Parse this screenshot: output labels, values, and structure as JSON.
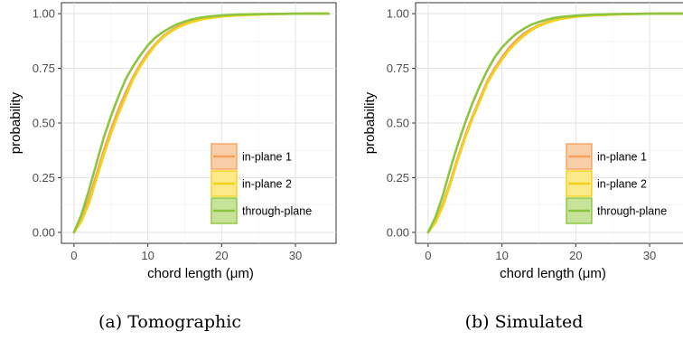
{
  "figure": {
    "panels": [
      {
        "caption": "(a) Tomographic",
        "chart_data": {
          "type": "line",
          "title": "",
          "xlabel": "chord length (μm)",
          "ylabel": "probability",
          "xlim": [
            -1.7,
            35.5
          ],
          "ylim": [
            -0.05,
            1.05
          ],
          "xticks": [
            0,
            10,
            20,
            30
          ],
          "yticks": [
            0.0,
            0.25,
            0.5,
            0.75,
            1.0
          ],
          "ytick_labels": [
            "0.00",
            "0.25",
            "0.50",
            "0.75",
            "1.00"
          ],
          "grid": true,
          "legend_position": "bottom-right",
          "series": [
            {
              "name": "in-plane 1",
              "color": "#f4a261",
              "fill": "#f9cfa9",
              "x": [
                0,
                1,
                2,
                3,
                4,
                5,
                6,
                7,
                8,
                9,
                10,
                11,
                12,
                13,
                14,
                15,
                16,
                17,
                18,
                20,
                22,
                25,
                28,
                31,
                34.5
              ],
              "y": [
                0.0,
                0.06,
                0.15,
                0.26,
                0.37,
                0.47,
                0.56,
                0.64,
                0.71,
                0.77,
                0.82,
                0.86,
                0.895,
                0.92,
                0.94,
                0.955,
                0.965,
                0.973,
                0.98,
                0.988,
                0.993,
                0.997,
                0.999,
                1.0,
                1.0
              ]
            },
            {
              "name": "in-plane 2",
              "color": "#f2d21b",
              "fill": "#fbe98a",
              "x": [
                0,
                1,
                2,
                3,
                4,
                5,
                6,
                7,
                8,
                9,
                10,
                11,
                12,
                13,
                14,
                15,
                16,
                17,
                18,
                20,
                22,
                25,
                28,
                31,
                34.5
              ],
              "y": [
                0.0,
                0.05,
                0.13,
                0.24,
                0.35,
                0.45,
                0.54,
                0.62,
                0.7,
                0.76,
                0.81,
                0.855,
                0.89,
                0.915,
                0.935,
                0.95,
                0.962,
                0.971,
                0.978,
                0.987,
                0.992,
                0.996,
                0.999,
                1.0,
                1.0
              ]
            },
            {
              "name": "through-plane",
              "color": "#8cc63f",
              "fill": "#c7e39a",
              "x": [
                0,
                1,
                2,
                3,
                4,
                5,
                6,
                7,
                8,
                9,
                10,
                11,
                12,
                13,
                14,
                15,
                16,
                17,
                18,
                20,
                22,
                25,
                28,
                31,
                34.5
              ],
              "y": [
                0.0,
                0.08,
                0.19,
                0.31,
                0.43,
                0.53,
                0.62,
                0.7,
                0.76,
                0.81,
                0.855,
                0.89,
                0.915,
                0.935,
                0.952,
                0.964,
                0.974,
                0.981,
                0.986,
                0.992,
                0.996,
                0.998,
                0.999,
                1.0,
                1.0
              ]
            }
          ]
        }
      },
      {
        "caption": "(b) Simulated",
        "chart_data": {
          "type": "line",
          "title": "",
          "xlabel": "chord length (μm)",
          "ylabel": "probability",
          "xlim": [
            -1.7,
            35.5
          ],
          "ylim": [
            -0.05,
            1.05
          ],
          "xticks": [
            0,
            10,
            20,
            30
          ],
          "yticks": [
            0.0,
            0.25,
            0.5,
            0.75,
            1.0
          ],
          "ytick_labels": [
            "0.00",
            "0.25",
            "0.50",
            "0.75",
            "1.00"
          ],
          "grid": true,
          "legend_position": "bottom-right",
          "series": [
            {
              "name": "in-plane 1",
              "color": "#f4a261",
              "fill": "#f9cfa9",
              "x": [
                0,
                1,
                2,
                3,
                4,
                5,
                6,
                7,
                8,
                9,
                10,
                11,
                12,
                13,
                14,
                15,
                16,
                17,
                18,
                20,
                22,
                25,
                28,
                31,
                34.5
              ],
              "y": [
                0.0,
                0.05,
                0.13,
                0.23,
                0.34,
                0.44,
                0.53,
                0.61,
                0.69,
                0.75,
                0.8,
                0.845,
                0.88,
                0.91,
                0.93,
                0.947,
                0.96,
                0.97,
                0.977,
                0.987,
                0.992,
                0.996,
                0.999,
                1.0,
                1.0
              ]
            },
            {
              "name": "in-plane 2",
              "color": "#f2d21b",
              "fill": "#fbe98a",
              "x": [
                0,
                1,
                2,
                3,
                4,
                5,
                6,
                7,
                8,
                9,
                10,
                11,
                12,
                13,
                14,
                15,
                16,
                17,
                18,
                20,
                22,
                25,
                28,
                31,
                34.5
              ],
              "y": [
                0.0,
                0.045,
                0.12,
                0.22,
                0.33,
                0.43,
                0.52,
                0.6,
                0.68,
                0.74,
                0.79,
                0.835,
                0.87,
                0.9,
                0.925,
                0.943,
                0.957,
                0.968,
                0.976,
                0.986,
                0.992,
                0.996,
                0.999,
                1.0,
                1.0
              ]
            },
            {
              "name": "through-plane",
              "color": "#8cc63f",
              "fill": "#c7e39a",
              "x": [
                0,
                1,
                2,
                3,
                4,
                5,
                6,
                7,
                8,
                9,
                10,
                11,
                12,
                13,
                14,
                15,
                16,
                17,
                18,
                20,
                22,
                25,
                28,
                31,
                34.5
              ],
              "y": [
                0.0,
                0.07,
                0.17,
                0.29,
                0.4,
                0.5,
                0.59,
                0.67,
                0.74,
                0.8,
                0.845,
                0.88,
                0.91,
                0.932,
                0.95,
                0.962,
                0.972,
                0.98,
                0.985,
                0.991,
                0.995,
                0.998,
                0.999,
                1.0,
                1.0
              ]
            }
          ]
        }
      }
    ]
  }
}
